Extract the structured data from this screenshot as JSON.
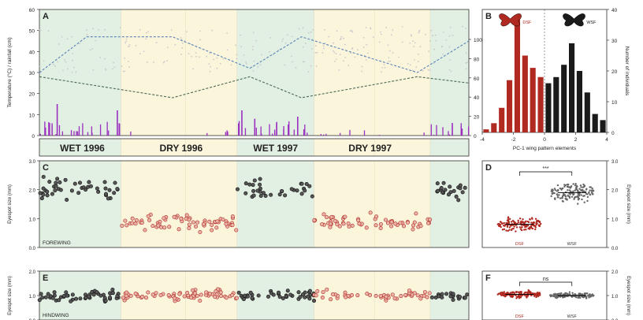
{
  "chart_data": [
    {
      "panel": "A",
      "type": "line",
      "ylabel_left": "Temperature (°C) / rainfall (cm)",
      "ylabel_right": "% relative humidity",
      "ylim_left": [
        0,
        60
      ],
      "yticks_left": [
        "0",
        "10",
        "20",
        "30",
        "40",
        "50",
        "60"
      ],
      "ylim_right": [
        0,
        100
      ],
      "yticks_right": [
        "0",
        "20",
        "40",
        "60",
        "80",
        "100"
      ],
      "season_labels": [
        "WET 1996",
        "DRY 1996",
        "WET 1997",
        "DRY 1997"
      ],
      "series": [
        {
          "x": [
            0,
            0.11,
            0.31,
            0.49,
            0.61,
            0.88,
            1.0
          ],
          "values": [
            30,
            47,
            47,
            32,
            47,
            30,
            45
          ]
        },
        {
          "x": [
            0,
            0.31,
            0.49,
            0.61,
            0.88,
            1.0
          ],
          "values": [
            28,
            18,
            28,
            18,
            28,
            25
          ]
        }
      ],
      "rainfall_notes": "purple bars, highest in wet seasons (max ~15)"
    },
    {
      "panel": "B",
      "type": "bar",
      "xlabel": "PC-1 wing pattern elements",
      "ylabel": "Number of individuals",
      "xlim": [
        -4,
        4
      ],
      "xticks": [
        "-4",
        "-2",
        "0",
        "2",
        "4"
      ],
      "ylim": [
        0,
        40
      ],
      "yticks": [
        "0",
        "10",
        "20",
        "30",
        "40"
      ],
      "series": [
        {
          "name": "DSF",
          "color": "#b02a22",
          "x": [
            -3.75,
            -3.25,
            -2.75,
            -2.25,
            -1.75,
            -1.25,
            -0.75,
            -0.25
          ],
          "values": [
            1,
            3,
            8,
            17,
            38,
            25,
            21,
            18
          ]
        },
        {
          "name": "WSF",
          "color": "#1a1a1a",
          "x": [
            0.25,
            0.75,
            1.25,
            1.75,
            2.25,
            2.75,
            3.25,
            3.75
          ],
          "values": [
            16,
            18,
            22,
            29,
            20,
            13,
            6,
            4
          ]
        }
      ]
    },
    {
      "panel": "C",
      "type": "scatter",
      "ylabel": "Eyespot size (mm)",
      "annotation": "FOREWING",
      "ylim": [
        0,
        3
      ],
      "yticks": [
        "0.0",
        "1.0",
        "2.0",
        "3.0"
      ]
    },
    {
      "panel": "D",
      "type": "scatter",
      "ylabel": "Eyespot size (mm)",
      "ylim": [
        0,
        3
      ],
      "yticks": [
        "0.0",
        "1.0",
        "2.0",
        "3.0"
      ],
      "categories": [
        "DSF",
        "WSF"
      ],
      "values": [
        0.8,
        1.9
      ],
      "significance": "***"
    },
    {
      "panel": "E",
      "type": "scatter",
      "ylabel": "Eyespot size (mm)",
      "annotation": "HINDWING",
      "ylim": [
        0,
        2
      ],
      "yticks": [
        "0.0",
        "1.0",
        "2.0"
      ]
    },
    {
      "panel": "F",
      "type": "scatter",
      "ylabel": "Eyespot size (mm)",
      "ylim": [
        0,
        2
      ],
      "yticks": [
        "0.0",
        "1.0",
        "2.0"
      ],
      "categories": [
        "DSF",
        "WSF"
      ],
      "values": [
        1.05,
        1.0
      ],
      "significance": "ns"
    }
  ],
  "colors": {
    "wet": "#e2efe3",
    "dry": "#fbf5dc",
    "dsf": "#b02a22",
    "wsf": "#1a1a1a",
    "line": "#5c84b8",
    "rain": "#9b2fbf"
  }
}
